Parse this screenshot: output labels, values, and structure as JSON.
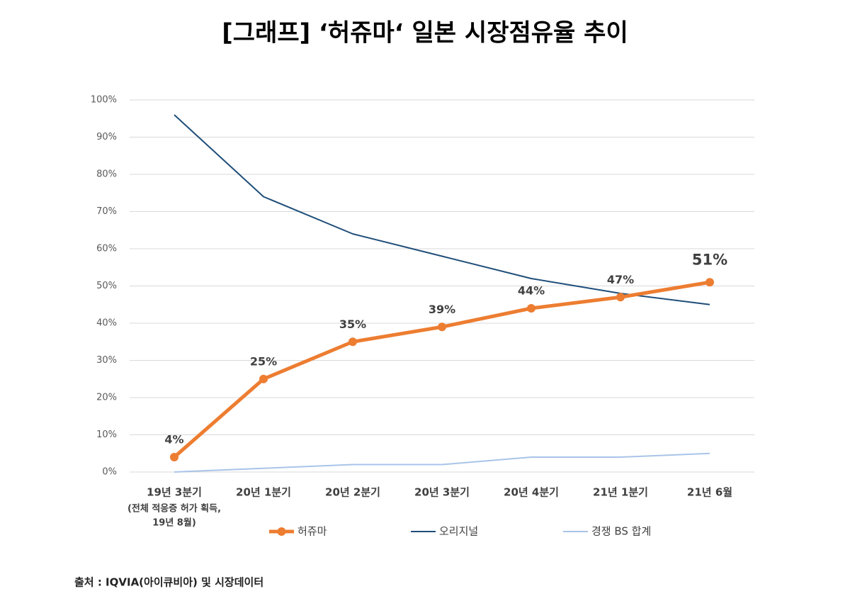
{
  "chart_data": {
    "type": "line",
    "title": "[그래프] ‘허쥬마‘ 일본 시장점유율 추이",
    "categories": [
      "19년 3분기",
      "20년 1분기",
      "20년 2분기",
      "20년 3분기",
      "20년 4분기",
      "21년 1분기",
      "21년 6월"
    ],
    "category_note": [
      "(전체 적응증 허가 획득,",
      "19년 8월)"
    ],
    "series": [
      {
        "name": "허쥬마",
        "color": "#ed7d31",
        "values": [
          4,
          25,
          35,
          39,
          44,
          47,
          51
        ],
        "value_labels": [
          "4%",
          "25%",
          "35%",
          "39%",
          "44%",
          "47%",
          "51%"
        ],
        "markers": true
      },
      {
        "name": "오리지널",
        "color": "#1f4e79",
        "values": [
          96,
          74,
          64,
          58,
          52,
          48,
          45
        ]
      },
      {
        "name": "경쟁 BS 합계",
        "color": "#a9c4e8",
        "values": [
          0,
          1,
          2,
          2,
          4,
          4,
          5
        ]
      }
    ],
    "ylim": [
      0,
      100
    ],
    "yticks": [
      {
        "value": 0,
        "label": "0%"
      },
      {
        "value": 10,
        "label": "10%"
      },
      {
        "value": 20,
        "label": "20%"
      },
      {
        "value": 30,
        "label": "30%"
      },
      {
        "value": 40,
        "label": "40%"
      },
      {
        "value": 50,
        "label": "50%"
      },
      {
        "value": 60,
        "label": "60%"
      },
      {
        "value": 70,
        "label": "70%"
      },
      {
        "value": 80,
        "label": "80%"
      },
      {
        "value": 90,
        "label": "90%"
      },
      {
        "value": 100,
        "label": "100%"
      }
    ],
    "grid": true,
    "legend": "bottom",
    "source": "출처 : IQVIA(아이큐비아) 및 시장데이터"
  }
}
